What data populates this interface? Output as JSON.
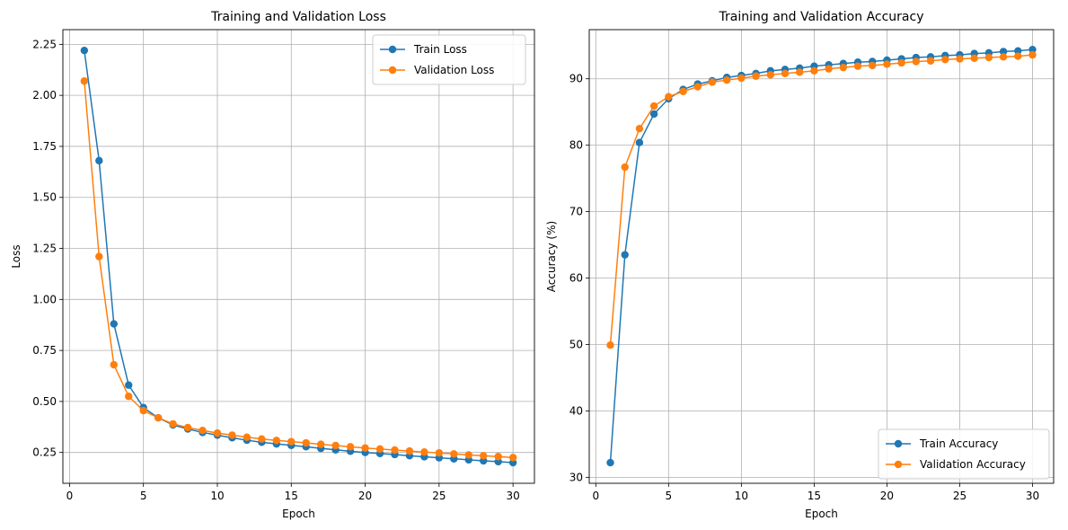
{
  "chart_data": [
    {
      "type": "line",
      "title": "Training and Validation Loss",
      "xlabel": "Epoch",
      "ylabel": "Loss",
      "xlim": [
        -0.45,
        31.45
      ],
      "ylim": [
        0.099,
        2.322
      ],
      "xticks": [
        0,
        5,
        10,
        15,
        20,
        25,
        30
      ],
      "xtick_labels": [
        "0",
        "5",
        "10",
        "15",
        "20",
        "25",
        "30"
      ],
      "yticks": [
        0.25,
        0.5,
        0.75,
        1.0,
        1.25,
        1.5,
        1.75,
        2.0,
        2.25
      ],
      "ytick_labels": [
        "0.25",
        "0.50",
        "0.75",
        "1.00",
        "1.25",
        "1.50",
        "1.75",
        "2.00",
        "2.25"
      ],
      "grid": true,
      "legend_position": "top-right",
      "x": [
        1,
        2,
        3,
        4,
        5,
        6,
        7,
        8,
        9,
        10,
        11,
        12,
        13,
        14,
        15,
        16,
        17,
        18,
        19,
        20,
        21,
        22,
        23,
        24,
        25,
        26,
        27,
        28,
        29,
        30
      ],
      "series": [
        {
          "name": "Train Loss",
          "color": "#1f77b4",
          "values": [
            2.22,
            1.68,
            0.88,
            0.58,
            0.47,
            0.42,
            0.385,
            0.365,
            0.348,
            0.335,
            0.322,
            0.31,
            0.3,
            0.292,
            0.285,
            0.278,
            0.27,
            0.263,
            0.256,
            0.25,
            0.245,
            0.24,
            0.234,
            0.229,
            0.224,
            0.219,
            0.214,
            0.209,
            0.205,
            0.2
          ]
        },
        {
          "name": "Validation Loss",
          "color": "#ff7f0e",
          "values": [
            2.07,
            1.21,
            0.68,
            0.525,
            0.455,
            0.42,
            0.39,
            0.372,
            0.358,
            0.345,
            0.335,
            0.325,
            0.316,
            0.309,
            0.303,
            0.297,
            0.29,
            0.284,
            0.278,
            0.272,
            0.267,
            0.262,
            0.257,
            0.252,
            0.248,
            0.243,
            0.238,
            0.234,
            0.23,
            0.225
          ]
        }
      ]
    },
    {
      "type": "line",
      "title": "Training and Validation Accuracy",
      "xlabel": "Epoch",
      "ylabel": "Accuracy (%)",
      "xlim": [
        -0.45,
        31.45
      ],
      "ylim": [
        29.1,
        97.4
      ],
      "xticks": [
        0,
        5,
        10,
        15,
        20,
        25,
        30
      ],
      "xtick_labels": [
        "0",
        "5",
        "10",
        "15",
        "20",
        "25",
        "30"
      ],
      "yticks": [
        30,
        40,
        50,
        60,
        70,
        80,
        90
      ],
      "ytick_labels": [
        "30",
        "40",
        "50",
        "60",
        "70",
        "80",
        "90"
      ],
      "grid": true,
      "legend_position": "bottom-right",
      "x": [
        1,
        2,
        3,
        4,
        5,
        6,
        7,
        8,
        9,
        10,
        11,
        12,
        13,
        14,
        15,
        16,
        17,
        18,
        19,
        20,
        21,
        22,
        23,
        24,
        25,
        26,
        27,
        28,
        29,
        30
      ],
      "series": [
        {
          "name": "Train Accuracy",
          "color": "#1f77b4",
          "values": [
            32.2,
            63.5,
            80.4,
            84.7,
            87.0,
            88.4,
            89.2,
            89.7,
            90.2,
            90.5,
            90.8,
            91.2,
            91.4,
            91.6,
            91.9,
            92.1,
            92.3,
            92.5,
            92.6,
            92.8,
            93.0,
            93.2,
            93.3,
            93.5,
            93.6,
            93.8,
            93.9,
            94.1,
            94.2,
            94.4
          ]
        },
        {
          "name": "Validation Accuracy",
          "color": "#ff7f0e",
          "values": [
            49.9,
            76.7,
            82.5,
            85.9,
            87.3,
            88.1,
            88.8,
            89.5,
            89.8,
            90.1,
            90.4,
            90.6,
            90.8,
            91.0,
            91.2,
            91.5,
            91.7,
            91.9,
            92.0,
            92.2,
            92.4,
            92.6,
            92.7,
            92.9,
            93.0,
            93.1,
            93.2,
            93.3,
            93.4,
            93.6
          ]
        }
      ]
    }
  ]
}
